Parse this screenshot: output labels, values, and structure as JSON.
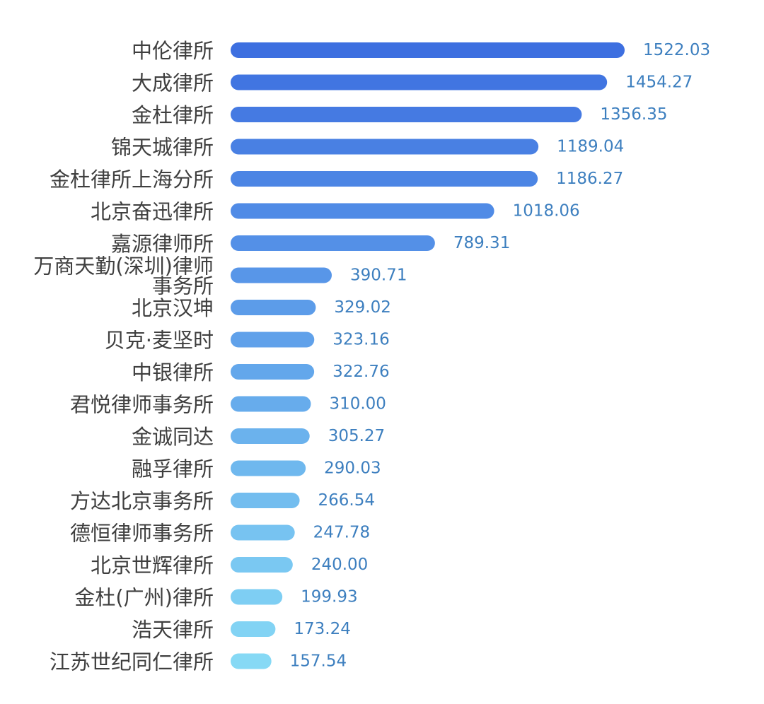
{
  "chart_data": {
    "type": "bar",
    "orientation": "horizontal",
    "categories": [
      "中伦律所",
      "大成律所",
      "金杜律所",
      "锦天城律所",
      "金杜律所上海分所",
      "北京奋迅律所",
      "嘉源律师所",
      "万商天勤(深圳)律师事务所",
      "北京汉坤",
      "贝克·麦坚时",
      "中银律所",
      "君悦律师事务所",
      "金诚同达",
      "融孚律所",
      "方达北京事务所",
      "德恒律师事务所",
      "北京世辉律所",
      "金杜(广州)律所",
      "浩天律所",
      "江苏世纪同仁律所"
    ],
    "category_lines": [
      [
        "中伦律所"
      ],
      [
        "大成律所"
      ],
      [
        "金杜律所"
      ],
      [
        "锦天城律所"
      ],
      [
        "金杜律所上海分所"
      ],
      [
        "北京奋迅律所"
      ],
      [
        "嘉源律师所"
      ],
      [
        "万商天勤(深圳)律师",
        "事务所"
      ],
      [
        "北京汉坤"
      ],
      [
        "贝克·麦坚时"
      ],
      [
        "中银律所"
      ],
      [
        "君悦律师事务所"
      ],
      [
        "金诚同达"
      ],
      [
        "融孚律所"
      ],
      [
        "方达北京事务所"
      ],
      [
        "德恒律师事务所"
      ],
      [
        "北京世辉律所"
      ],
      [
        "金杜(广州)律所"
      ],
      [
        "浩天律所"
      ],
      [
        "江苏世纪同仁律所"
      ]
    ],
    "values": [
      1522.03,
      1454.27,
      1356.35,
      1189.04,
      1186.27,
      1018.06,
      789.31,
      390.71,
      329.02,
      323.16,
      322.76,
      310.0,
      305.27,
      290.03,
      266.54,
      247.78,
      240.0,
      199.93,
      173.24,
      157.54
    ],
    "value_labels": [
      "1522.03",
      "1454.27",
      "1356.35",
      "1189.04",
      "1186.27",
      "1018.06",
      "789.31",
      "390.71",
      "329.02",
      "323.16",
      "322.76",
      "310.00",
      "305.27",
      "290.03",
      "266.54",
      "247.78",
      "240.00",
      "199.93",
      "173.24",
      "157.54"
    ],
    "title": "",
    "xlabel": "",
    "ylabel": "",
    "xlim": [
      0,
      1522.03
    ],
    "grid": false,
    "legend": "none",
    "colors": {
      "top": "#3d6fe0",
      "bottom": "#86d9f5",
      "category_text": "#3f3f3f",
      "value_text": "#3d7fbf"
    }
  }
}
